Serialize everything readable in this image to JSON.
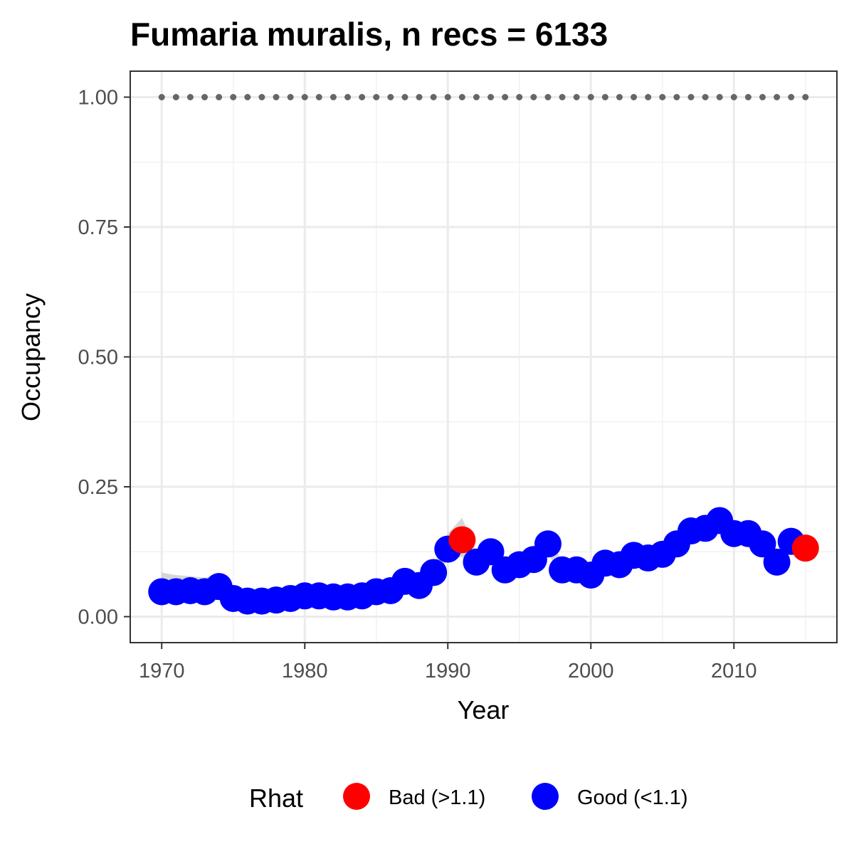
{
  "chart_data": {
    "type": "scatter",
    "title": "Fumaria muralis, n recs = 6133",
    "xlabel": "Year",
    "ylabel": "Occupancy",
    "xlim": [
      1967.8,
      2017.2
    ],
    "ylim": [
      -0.05,
      1.05
    ],
    "x_ticks": [
      1970,
      1980,
      1990,
      2000,
      2010
    ],
    "x_tick_labels": [
      "1970",
      "1980",
      "1990",
      "2000",
      "2010"
    ],
    "y_ticks": [
      0,
      0.25,
      0.5,
      0.75,
      1.0
    ],
    "y_tick_labels": [
      "0.00",
      "0.25",
      "0.50",
      "0.75",
      "1.00"
    ],
    "grid": true,
    "legend": {
      "title": "Rhat",
      "position": "bottom",
      "entries": [
        {
          "label": "Bad (>1.1)",
          "color": "#ff0000"
        },
        {
          "label": "Good (<1.1)",
          "color": "#0000ff"
        }
      ]
    },
    "colors": {
      "bad": "#ff0000",
      "good": "#0000ff",
      "ribbon": "#cccccc",
      "reference_line": "#666666"
    },
    "reference_line": {
      "y": 1.0,
      "style": "dotted",
      "x_from": 1970,
      "x_to": 2015
    },
    "series": [
      {
        "x": [
          1970,
          1971,
          1972,
          1973,
          1974,
          1975,
          1976,
          1977,
          1978,
          1979,
          1980,
          1981,
          1982,
          1983,
          1984,
          1985,
          1986,
          1987,
          1988,
          1989,
          1990,
          1991,
          1992,
          1993,
          1994,
          1995,
          1996,
          1997,
          1998,
          1999,
          2000,
          2001,
          2002,
          2003,
          2004,
          2005,
          2006,
          2007,
          2008,
          2009,
          2010,
          2011,
          2012,
          2013,
          2014,
          2015
        ],
        "y": [
          0.048,
          0.048,
          0.05,
          0.048,
          0.058,
          0.035,
          0.03,
          0.03,
          0.032,
          0.035,
          0.04,
          0.04,
          0.038,
          0.038,
          0.04,
          0.048,
          0.05,
          0.068,
          0.06,
          0.085,
          0.13,
          0.148,
          0.105,
          0.125,
          0.09,
          0.1,
          0.11,
          0.14,
          0.09,
          0.09,
          0.08,
          0.103,
          0.1,
          0.118,
          0.113,
          0.12,
          0.14,
          0.165,
          0.17,
          0.185,
          0.16,
          0.16,
          0.14,
          0.105,
          0.145,
          0.132
        ],
        "rhat": [
          "good",
          "good",
          "good",
          "good",
          "good",
          "good",
          "good",
          "good",
          "good",
          "good",
          "good",
          "good",
          "good",
          "good",
          "good",
          "good",
          "good",
          "good",
          "good",
          "good",
          "good",
          "bad",
          "good",
          "good",
          "good",
          "good",
          "good",
          "good",
          "good",
          "good",
          "good",
          "good",
          "good",
          "good",
          "good",
          "good",
          "good",
          "good",
          "good",
          "good",
          "good",
          "good",
          "good",
          "good",
          "good",
          "bad"
        ]
      }
    ],
    "ribbon": {
      "lower": [
        0.035,
        0.035,
        0.037,
        0.036,
        0.045,
        0.025,
        0.022,
        0.022,
        0.023,
        0.025,
        0.03,
        0.03,
        0.028,
        0.028,
        0.03,
        0.036,
        0.038,
        0.055,
        0.048,
        0.07,
        0.11,
        0.115,
        0.088,
        0.108,
        0.075,
        0.085,
        0.095,
        0.122,
        0.077,
        0.077,
        0.068,
        0.088,
        0.086,
        0.103,
        0.098,
        0.105,
        0.123,
        0.148,
        0.153,
        0.165,
        0.142,
        0.142,
        0.122,
        0.09,
        0.125,
        0.112
      ],
      "upper": [
        0.085,
        0.08,
        0.078,
        0.075,
        0.08,
        0.05,
        0.042,
        0.042,
        0.045,
        0.048,
        0.054,
        0.054,
        0.052,
        0.052,
        0.054,
        0.062,
        0.065,
        0.085,
        0.075,
        0.1,
        0.16,
        0.19,
        0.125,
        0.145,
        0.108,
        0.118,
        0.128,
        0.16,
        0.105,
        0.105,
        0.095,
        0.12,
        0.117,
        0.135,
        0.13,
        0.138,
        0.16,
        0.188,
        0.192,
        0.21,
        0.18,
        0.18,
        0.16,
        0.122,
        0.168,
        0.155
      ]
    }
  }
}
